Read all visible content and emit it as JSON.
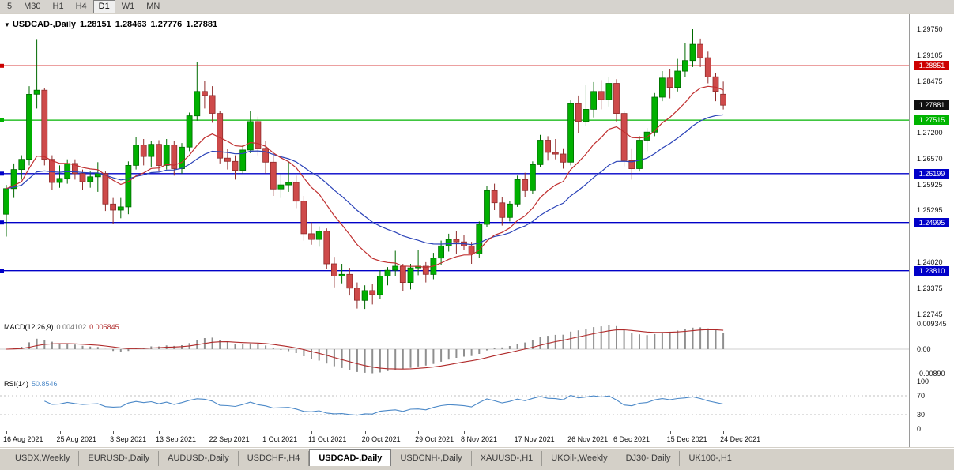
{
  "toolbar": {
    "timeframes": [
      "5",
      "M30",
      "H1",
      "H4",
      "D1",
      "W1",
      "MN"
    ],
    "active": "D1"
  },
  "chart": {
    "title": {
      "symbol_period": "USDCAD-,Daily",
      "open": "1.28151",
      "high": "1.28463",
      "low": "1.27776",
      "close": "1.27881"
    },
    "price_axis": {
      "ticks": [
        "1.29750",
        "1.29105",
        "1.28475",
        "1.27200",
        "1.26570",
        "1.25925",
        "1.25295",
        "1.24020",
        "1.23375",
        "1.22745"
      ],
      "tags": [
        {
          "label": "1.28851",
          "color": "#CC0000",
          "name": "resistance-level-tag"
        },
        {
          "label": "1.27881",
          "color": "#111111",
          "name": "current-price-tag"
        },
        {
          "label": "1.27515",
          "color": "#00B400",
          "name": "support-level-tag-green"
        },
        {
          "label": "1.26199",
          "color": "#0000C8",
          "name": "support-level-tag-blue-1"
        },
        {
          "label": "1.24995",
          "color": "#0000C8",
          "name": "support-level-tag-blue-2"
        },
        {
          "label": "1.23810",
          "color": "#0000C8",
          "name": "support-level-tag-blue-3"
        }
      ]
    },
    "time_axis": {
      "labels": [
        {
          "text": "16 Aug 2021",
          "i": 0
        },
        {
          "text": "25 Aug 2021",
          "i": 7
        },
        {
          "text": "3 Sep 2021",
          "i": 14
        },
        {
          "text": "13 Sep 2021",
          "i": 20
        },
        {
          "text": "22 Sep 2021",
          "i": 27
        },
        {
          "text": "1 Oct 2021",
          "i": 34
        },
        {
          "text": "11 Oct 2021",
          "i": 40
        },
        {
          "text": "20 Oct 2021",
          "i": 47
        },
        {
          "text": "29 Oct 2021",
          "i": 54
        },
        {
          "text": "8 Nov 2021",
          "i": 60
        },
        {
          "text": "17 Nov 2021",
          "i": 67
        },
        {
          "text": "26 Nov 2021",
          "i": 74
        },
        {
          "text": "6 Dec 2021",
          "i": 80
        },
        {
          "text": "15 Dec 2021",
          "i": 87
        },
        {
          "text": "24 Dec 2021",
          "i": 94
        }
      ]
    }
  },
  "indicators": {
    "macd": {
      "label": "MACD(12,26,9)",
      "value_main": "0.004102",
      "value_signal": "0.005845",
      "axis": [
        "0.009345",
        "0.00",
        "-0.00890"
      ],
      "histogram_color": "#8f8f8f",
      "signal_color": "#b02a2a"
    },
    "rsi": {
      "label": "RSI(14)",
      "value": "50.8546",
      "axis": [
        "100",
        "70",
        "30",
        "0"
      ],
      "levels": [
        70,
        30
      ],
      "color": "#4c89c8"
    }
  },
  "tabs": {
    "items": [
      "USDX,Weekly",
      "EURUSD-,Daily",
      "AUDUSD-,Daily",
      "USDCHF-,H4",
      "USDCAD-,Daily",
      "USDCNH-,Daily",
      "XAUUSD-,H1",
      "UKOil-,Weekly",
      "DJ30-,Daily",
      "UK100-,H1"
    ],
    "active": "USDCAD-,Daily"
  },
  "chart_data": {
    "type": "candlestick",
    "symbol": "USDCAD",
    "timeframe": "Daily",
    "title": "USDCAD-,Daily",
    "last_ohlc": {
      "open": 1.28151,
      "high": 1.28463,
      "low": 1.27776,
      "close": 1.27881
    },
    "y_range": [
      1.2258,
      1.3012
    ],
    "ohlc_format": [
      "date",
      "open",
      "high",
      "low",
      "close"
    ],
    "colors": {
      "up": "#00B000",
      "up_border": "#006A00",
      "down": "#CE4A4A",
      "down_border": "#8F2B2B"
    },
    "overlays": [
      {
        "name": "ma-fast",
        "type": "ema",
        "period": 12,
        "color": "#C03030"
      },
      {
        "name": "ma-slow",
        "type": "ema",
        "period": 26,
        "color": "#2B43B8"
      }
    ],
    "horizontal_levels": [
      {
        "price": 1.28851,
        "color": "#CC0000"
      },
      {
        "price": 1.27515,
        "color": "#00B400"
      },
      {
        "price": 1.26199,
        "color": "#0000C8"
      },
      {
        "price": 1.24995,
        "color": "#0000C8"
      },
      {
        "price": 1.2381,
        "color": "#0000C8"
      }
    ],
    "candles": [
      [
        "2021-08-16",
        1.252,
        1.2592,
        1.2465,
        1.2583
      ],
      [
        "2021-08-17",
        1.2583,
        1.2645,
        1.256,
        1.263
      ],
      [
        "2021-08-18",
        1.263,
        1.2665,
        1.2605,
        1.2655
      ],
      [
        "2021-08-19",
        1.2655,
        1.2835,
        1.264,
        1.2815
      ],
      [
        "2021-08-20",
        1.2815,
        1.2949,
        1.278,
        1.2825
      ],
      [
        "2021-08-23",
        1.2825,
        1.283,
        1.264,
        1.2655
      ],
      [
        "2021-08-24",
        1.2655,
        1.2665,
        1.258,
        1.2598
      ],
      [
        "2021-08-25",
        1.2598,
        1.264,
        1.2585,
        1.2608
      ],
      [
        "2021-08-26",
        1.2608,
        1.2655,
        1.2595,
        1.2645
      ],
      [
        "2021-08-27",
        1.2645,
        1.2655,
        1.2605,
        1.262
      ],
      [
        "2021-08-30",
        1.262,
        1.263,
        1.258,
        1.26
      ],
      [
        "2021-08-31",
        1.26,
        1.2625,
        1.2585,
        1.2612
      ],
      [
        "2021-09-01",
        1.2612,
        1.2648,
        1.2575,
        1.262
      ],
      [
        "2021-09-02",
        1.262,
        1.2625,
        1.2528,
        1.2545
      ],
      [
        "2021-09-03",
        1.2545,
        1.256,
        1.2495,
        1.253
      ],
      [
        "2021-09-06",
        1.253,
        1.256,
        1.251,
        1.2538
      ],
      [
        "2021-09-07",
        1.2538,
        1.265,
        1.252,
        1.264
      ],
      [
        "2021-09-08",
        1.264,
        1.271,
        1.263,
        1.269
      ],
      [
        "2021-09-09",
        1.269,
        1.2705,
        1.264,
        1.2662
      ],
      [
        "2021-09-10",
        1.2662,
        1.27,
        1.2635,
        1.2692
      ],
      [
        "2021-09-13",
        1.2692,
        1.2702,
        1.2625,
        1.264
      ],
      [
        "2021-09-14",
        1.264,
        1.2705,
        1.263,
        1.269
      ],
      [
        "2021-09-15",
        1.269,
        1.27,
        1.2615,
        1.2632
      ],
      [
        "2021-09-16",
        1.2632,
        1.2695,
        1.262,
        1.2685
      ],
      [
        "2021-09-17",
        1.2685,
        1.277,
        1.2675,
        1.2762
      ],
      [
        "2021-09-20",
        1.2762,
        1.2895,
        1.275,
        1.2822
      ],
      [
        "2021-09-21",
        1.2822,
        1.2848,
        1.278,
        1.2812
      ],
      [
        "2021-09-22",
        1.2812,
        1.2835,
        1.2745,
        1.2768
      ],
      [
        "2021-09-23",
        1.2768,
        1.2775,
        1.2645,
        1.2658
      ],
      [
        "2021-09-24",
        1.2658,
        1.268,
        1.263,
        1.265
      ],
      [
        "2021-09-27",
        1.265,
        1.2665,
        1.2605,
        1.2628
      ],
      [
        "2021-09-28",
        1.2628,
        1.269,
        1.262,
        1.2678
      ],
      [
        "2021-09-29",
        1.2678,
        1.2775,
        1.267,
        1.2748
      ],
      [
        "2021-09-30",
        1.2748,
        1.276,
        1.2665,
        1.2682
      ],
      [
        "2021-10-01",
        1.2682,
        1.27,
        1.262,
        1.2648
      ],
      [
        "2021-10-04",
        1.2648,
        1.2665,
        1.2565,
        1.2582
      ],
      [
        "2021-10-05",
        1.2582,
        1.262,
        1.256,
        1.2592
      ],
      [
        "2021-10-06",
        1.2592,
        1.265,
        1.2575,
        1.2598
      ],
      [
        "2021-10-07",
        1.2598,
        1.2615,
        1.2535,
        1.2552
      ],
      [
        "2021-10-08",
        1.2552,
        1.2565,
        1.2455,
        1.2472
      ],
      [
        "2021-10-11",
        1.2472,
        1.25,
        1.2445,
        1.2458
      ],
      [
        "2021-10-12",
        1.2458,
        1.249,
        1.244,
        1.2478
      ],
      [
        "2021-10-13",
        1.2478,
        1.2485,
        1.2385,
        1.2398
      ],
      [
        "2021-10-14",
        1.2398,
        1.2415,
        1.234,
        1.2368
      ],
      [
        "2021-10-15",
        1.2368,
        1.2398,
        1.235,
        1.2372
      ],
      [
        "2021-10-18",
        1.2372,
        1.2388,
        1.232,
        1.2338
      ],
      [
        "2021-10-19",
        1.2338,
        1.2352,
        1.2288,
        1.2308
      ],
      [
        "2021-10-20",
        1.2308,
        1.2345,
        1.2287,
        1.2332
      ],
      [
        "2021-10-21",
        1.2332,
        1.2348,
        1.2298,
        1.2322
      ],
      [
        "2021-10-22",
        1.2322,
        1.2382,
        1.2312,
        1.2368
      ],
      [
        "2021-10-25",
        1.2368,
        1.239,
        1.2345,
        1.2382
      ],
      [
        "2021-10-26",
        1.2382,
        1.243,
        1.2368,
        1.2392
      ],
      [
        "2021-10-27",
        1.2392,
        1.2398,
        1.233,
        1.2352
      ],
      [
        "2021-10-28",
        1.2352,
        1.2398,
        1.2335,
        1.2388
      ],
      [
        "2021-10-29",
        1.2388,
        1.2432,
        1.237,
        1.2392
      ],
      [
        "2021-11-01",
        1.2392,
        1.2402,
        1.2352,
        1.2372
      ],
      [
        "2021-11-02",
        1.2372,
        1.2425,
        1.236,
        1.2412
      ],
      [
        "2021-11-03",
        1.2412,
        1.2455,
        1.2395,
        1.2442
      ],
      [
        "2021-11-04",
        1.2442,
        1.2472,
        1.2428,
        1.2458
      ],
      [
        "2021-11-05",
        1.2458,
        1.2478,
        1.2422,
        1.2452
      ],
      [
        "2021-11-08",
        1.2452,
        1.2468,
        1.2432,
        1.2442
      ],
      [
        "2021-11-09",
        1.2442,
        1.2452,
        1.2398,
        1.2422
      ],
      [
        "2021-11-10",
        1.2422,
        1.2502,
        1.2412,
        1.2495
      ],
      [
        "2021-11-11",
        1.2495,
        1.259,
        1.2488,
        1.2578
      ],
      [
        "2021-11-12",
        1.2578,
        1.2595,
        1.253,
        1.2548
      ],
      [
        "2021-11-15",
        1.2548,
        1.2562,
        1.2492,
        1.2512
      ],
      [
        "2021-11-16",
        1.2512,
        1.2552,
        1.2502,
        1.2545
      ],
      [
        "2021-11-17",
        1.2545,
        1.2615,
        1.2538,
        1.2605
      ],
      [
        "2021-11-18",
        1.2605,
        1.2622,
        1.2562,
        1.2578
      ],
      [
        "2021-11-19",
        1.2578,
        1.265,
        1.257,
        1.2642
      ],
      [
        "2021-11-22",
        1.2642,
        1.2715,
        1.2635,
        1.2702
      ],
      [
        "2021-11-23",
        1.2702,
        1.2712,
        1.2652,
        1.2672
      ],
      [
        "2021-11-24",
        1.2672,
        1.2705,
        1.2655,
        1.2668
      ],
      [
        "2021-11-25",
        1.2668,
        1.2682,
        1.2632,
        1.2648
      ],
      [
        "2021-11-26",
        1.2648,
        1.28,
        1.264,
        1.2792
      ],
      [
        "2021-11-29",
        1.2792,
        1.2812,
        1.272,
        1.2748
      ],
      [
        "2021-11-30",
        1.2748,
        1.2838,
        1.2738,
        1.2778
      ],
      [
        "2021-12-01",
        1.2778,
        1.2845,
        1.2758,
        1.2822
      ],
      [
        "2021-12-02",
        1.2822,
        1.285,
        1.2778,
        1.2802
      ],
      [
        "2021-12-03",
        1.2802,
        1.2858,
        1.2785,
        1.2842
      ],
      [
        "2021-12-06",
        1.2842,
        1.2852,
        1.2748,
        1.2768
      ],
      [
        "2021-12-07",
        1.2768,
        1.2775,
        1.2638,
        1.2652
      ],
      [
        "2021-12-08",
        1.2652,
        1.2682,
        1.2605,
        1.2632
      ],
      [
        "2021-12-09",
        1.2632,
        1.2712,
        1.2625,
        1.2702
      ],
      [
        "2021-12-10",
        1.2702,
        1.2732,
        1.2675,
        1.2722
      ],
      [
        "2021-12-13",
        1.2722,
        1.2818,
        1.2712,
        1.2808
      ],
      [
        "2021-12-14",
        1.2808,
        1.2872,
        1.2798,
        1.2855
      ],
      [
        "2021-12-15",
        1.2855,
        1.2878,
        1.2805,
        1.2832
      ],
      [
        "2021-12-16",
        1.2832,
        1.2902,
        1.2822,
        1.2872
      ],
      [
        "2021-12-17",
        1.2872,
        1.2942,
        1.2858,
        1.2898
      ],
      [
        "2021-12-20",
        1.2898,
        1.2975,
        1.2882,
        1.2938
      ],
      [
        "2021-12-21",
        1.2938,
        1.2952,
        1.2882,
        1.2905
      ],
      [
        "2021-12-22",
        1.2905,
        1.292,
        1.2842,
        1.2858
      ],
      [
        "2021-12-23",
        1.2858,
        1.2868,
        1.2798,
        1.2822
      ],
      [
        "2021-12-24",
        1.28151,
        1.28463,
        1.27776,
        1.27881
      ]
    ]
  }
}
